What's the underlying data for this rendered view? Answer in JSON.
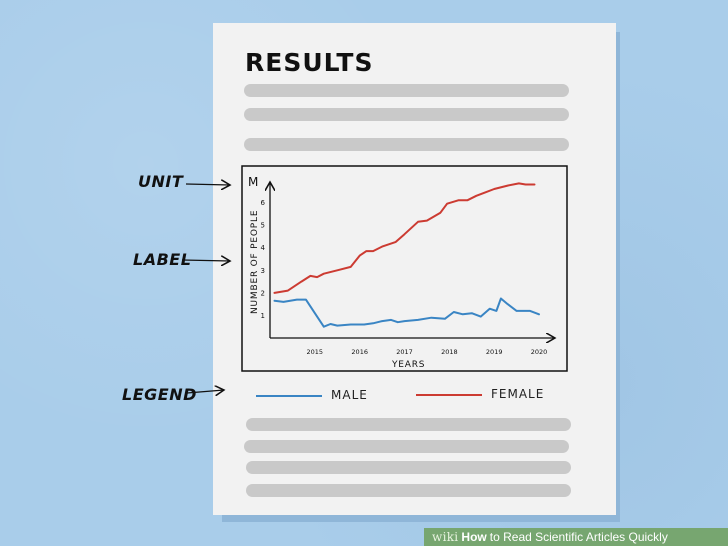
{
  "document": {
    "title": "RESULTS"
  },
  "annotations": {
    "unit": "UNIT",
    "label": "LABEL",
    "legend": "LEGEND"
  },
  "caption": {
    "wiki": "wiki",
    "how": "How",
    "rest": "to Read Scientific Articles Quickly"
  },
  "colors": {
    "male": "#3a85c4",
    "female": "#cc3b32"
  },
  "chart_data": {
    "type": "line",
    "title": "",
    "unit": "M",
    "xlabel": "YEARS",
    "ylabel": "NUMBER OF PEOPLE",
    "xlim": [
      2014.0,
      2020.2
    ],
    "ylim": [
      0,
      7.0
    ],
    "x_ticks": [
      "2015",
      "2016",
      "2017",
      "2018",
      "2019",
      "2020"
    ],
    "y_ticks": [
      "1",
      "2",
      "3",
      "4",
      "5",
      "6"
    ],
    "grid": false,
    "legend": "below",
    "series": [
      {
        "name": "MALE",
        "points": [
          [
            2014.1,
            1.65
          ],
          [
            2014.3,
            1.6
          ],
          [
            2014.6,
            1.7
          ],
          [
            2014.8,
            1.7
          ],
          [
            2015.05,
            0.95
          ],
          [
            2015.2,
            0.5
          ],
          [
            2015.35,
            0.62
          ],
          [
            2015.5,
            0.55
          ],
          [
            2015.8,
            0.6
          ],
          [
            2016.1,
            0.6
          ],
          [
            2016.3,
            0.65
          ],
          [
            2016.5,
            0.75
          ],
          [
            2016.7,
            0.8
          ],
          [
            2016.85,
            0.7
          ],
          [
            2017.0,
            0.75
          ],
          [
            2017.3,
            0.8
          ],
          [
            2017.6,
            0.9
          ],
          [
            2017.9,
            0.85
          ],
          [
            2018.1,
            1.15
          ],
          [
            2018.3,
            1.05
          ],
          [
            2018.5,
            1.1
          ],
          [
            2018.7,
            0.95
          ],
          [
            2018.9,
            1.3
          ],
          [
            2019.05,
            1.2
          ],
          [
            2019.15,
            1.75
          ],
          [
            2019.3,
            1.5
          ],
          [
            2019.5,
            1.2
          ],
          [
            2019.8,
            1.2
          ],
          [
            2020.0,
            1.05
          ]
        ]
      },
      {
        "name": "FEMALE",
        "points": [
          [
            2014.1,
            2.0
          ],
          [
            2014.4,
            2.1
          ],
          [
            2014.7,
            2.5
          ],
          [
            2014.9,
            2.75
          ],
          [
            2015.05,
            2.7
          ],
          [
            2015.2,
            2.85
          ],
          [
            2015.5,
            3.0
          ],
          [
            2015.8,
            3.15
          ],
          [
            2016.0,
            3.65
          ],
          [
            2016.15,
            3.85
          ],
          [
            2016.3,
            3.85
          ],
          [
            2016.5,
            4.05
          ],
          [
            2016.8,
            4.25
          ],
          [
            2017.0,
            4.6
          ],
          [
            2017.3,
            5.15
          ],
          [
            2017.5,
            5.2
          ],
          [
            2017.8,
            5.55
          ],
          [
            2017.95,
            5.95
          ],
          [
            2018.2,
            6.1
          ],
          [
            2018.4,
            6.1
          ],
          [
            2018.6,
            6.3
          ],
          [
            2018.8,
            6.45
          ],
          [
            2019.0,
            6.6
          ],
          [
            2019.3,
            6.75
          ],
          [
            2019.55,
            6.85
          ],
          [
            2019.7,
            6.8
          ],
          [
            2019.9,
            6.8
          ]
        ]
      }
    ]
  }
}
